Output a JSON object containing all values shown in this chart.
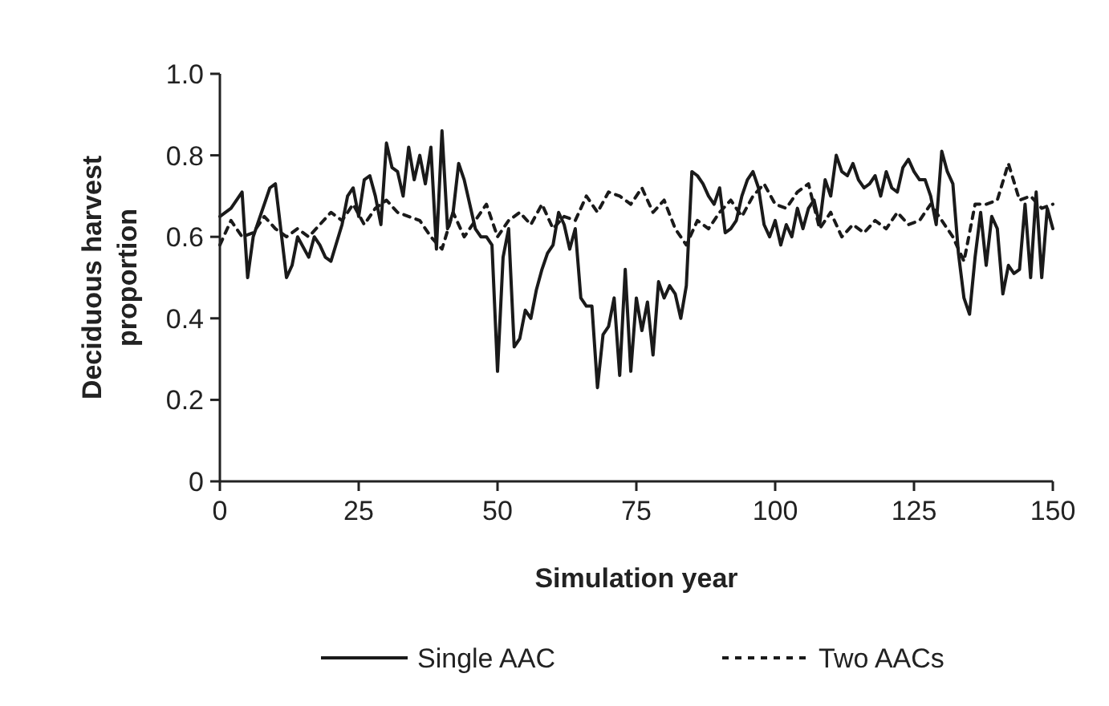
{
  "chart_data": {
    "type": "line",
    "xlabel": "Simulation year",
    "ylabel": "Deciduous harvest proportion",
    "xlim": [
      0,
      150
    ],
    "xticks": [
      0,
      25,
      50,
      75,
      100,
      125,
      150
    ],
    "ylim": [
      0,
      1
    ],
    "yticks": [
      0,
      0.2,
      0.4,
      0.6,
      0.8,
      {
        "value": 1,
        "label": "1.0"
      }
    ],
    "grid": false,
    "legend": "bottom",
    "marker": "none",
    "series": [
      {
        "name": "Single AAC",
        "color": "#1a1a1a",
        "line_style": "solid",
        "x": [
          0,
          2,
          4,
          5,
          6,
          8,
          9,
          10,
          12,
          13,
          14,
          16,
          17,
          18,
          19,
          20,
          22,
          23,
          24,
          25,
          26,
          27,
          28,
          29,
          30,
          31,
          32,
          33,
          34,
          35,
          36,
          37,
          38,
          39,
          40,
          41,
          42,
          43,
          44,
          45,
          46,
          47,
          48,
          49,
          50,
          51,
          52,
          53,
          54,
          55,
          56,
          57,
          58,
          59,
          60,
          61,
          62,
          63,
          64,
          65,
          66,
          67,
          68,
          69,
          70,
          71,
          72,
          73,
          74,
          75,
          76,
          77,
          78,
          79,
          80,
          81,
          82,
          83,
          84,
          85,
          86,
          87,
          88,
          89,
          90,
          91,
          92,
          93,
          94,
          95,
          96,
          97,
          98,
          99,
          100,
          101,
          102,
          103,
          104,
          105,
          106,
          107,
          108,
          109,
          110,
          111,
          112,
          113,
          114,
          115,
          116,
          117,
          118,
          119,
          120,
          121,
          122,
          123,
          124,
          125,
          126,
          127,
          128,
          129,
          130,
          131,
          132,
          133,
          134,
          135,
          136,
          137,
          138,
          139,
          140,
          141,
          142,
          143,
          144,
          145,
          146,
          147,
          148,
          149,
          150
        ],
        "values": [
          0.65,
          0.67,
          0.71,
          0.5,
          0.6,
          0.68,
          0.72,
          0.73,
          0.5,
          0.53,
          0.6,
          0.55,
          0.6,
          0.58,
          0.55,
          0.54,
          0.63,
          0.7,
          0.72,
          0.65,
          0.74,
          0.75,
          0.7,
          0.63,
          0.83,
          0.77,
          0.76,
          0.7,
          0.82,
          0.74,
          0.8,
          0.73,
          0.82,
          0.57,
          0.86,
          0.62,
          0.66,
          0.78,
          0.74,
          0.68,
          0.62,
          0.6,
          0.6,
          0.58,
          0.27,
          0.55,
          0.62,
          0.33,
          0.35,
          0.42,
          0.4,
          0.47,
          0.52,
          0.56,
          0.58,
          0.66,
          0.63,
          0.57,
          0.62,
          0.45,
          0.43,
          0.43,
          0.23,
          0.36,
          0.38,
          0.45,
          0.26,
          0.52,
          0.27,
          0.45,
          0.37,
          0.44,
          0.31,
          0.49,
          0.45,
          0.48,
          0.46,
          0.4,
          0.48,
          0.76,
          0.75,
          0.73,
          0.7,
          0.68,
          0.72,
          0.61,
          0.62,
          0.64,
          0.7,
          0.74,
          0.76,
          0.72,
          0.63,
          0.6,
          0.64,
          0.58,
          0.63,
          0.6,
          0.67,
          0.62,
          0.67,
          0.69,
          0.63,
          0.74,
          0.7,
          0.8,
          0.76,
          0.75,
          0.78,
          0.74,
          0.72,
          0.73,
          0.75,
          0.7,
          0.76,
          0.72,
          0.71,
          0.77,
          0.79,
          0.76,
          0.74,
          0.74,
          0.7,
          0.63,
          0.81,
          0.76,
          0.73,
          0.56,
          0.45,
          0.41,
          0.55,
          0.66,
          0.53,
          0.65,
          0.62,
          0.46,
          0.53,
          0.51,
          0.52,
          0.68,
          0.5,
          0.71,
          0.5,
          0.67,
          0.62
        ]
      },
      {
        "name": "Two AACs",
        "color": "#1a1a1a",
        "line_style": "dashed",
        "x": [
          0,
          2,
          4,
          6,
          8,
          10,
          12,
          14,
          16,
          18,
          20,
          22,
          24,
          26,
          28,
          30,
          32,
          34,
          36,
          38,
          40,
          42,
          44,
          46,
          48,
          50,
          52,
          54,
          56,
          58,
          60,
          62,
          64,
          66,
          68,
          70,
          72,
          74,
          76,
          78,
          80,
          82,
          84,
          86,
          88,
          90,
          92,
          94,
          96,
          98,
          100,
          102,
          104,
          106,
          108,
          110,
          112,
          114,
          116,
          118,
          120,
          122,
          124,
          126,
          128,
          130,
          132,
          134,
          136,
          138,
          140,
          142,
          144,
          146,
          148,
          150
        ],
        "values": [
          0.58,
          0.64,
          0.6,
          0.61,
          0.65,
          0.62,
          0.6,
          0.62,
          0.6,
          0.63,
          0.66,
          0.64,
          0.68,
          0.63,
          0.67,
          0.69,
          0.66,
          0.65,
          0.64,
          0.6,
          0.57,
          0.66,
          0.6,
          0.64,
          0.68,
          0.6,
          0.64,
          0.66,
          0.63,
          0.68,
          0.62,
          0.65,
          0.64,
          0.7,
          0.66,
          0.71,
          0.7,
          0.68,
          0.72,
          0.66,
          0.69,
          0.62,
          0.58,
          0.64,
          0.62,
          0.66,
          0.69,
          0.65,
          0.7,
          0.73,
          0.68,
          0.67,
          0.71,
          0.73,
          0.62,
          0.66,
          0.6,
          0.63,
          0.61,
          0.64,
          0.62,
          0.66,
          0.63,
          0.64,
          0.68,
          0.64,
          0.6,
          0.54,
          0.68,
          0.68,
          0.69,
          0.78,
          0.69,
          0.7,
          0.67,
          0.68
        ]
      }
    ]
  }
}
